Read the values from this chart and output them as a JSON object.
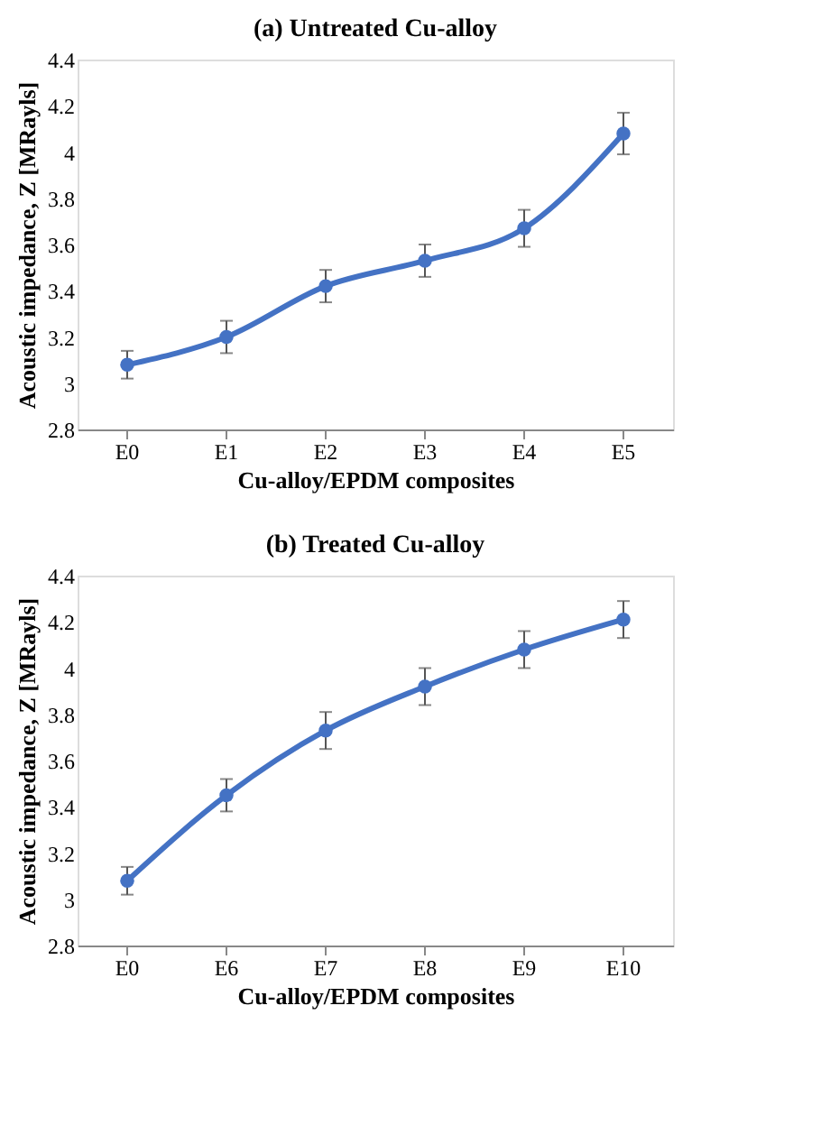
{
  "chart_data": [
    {
      "type": "line",
      "title": "(a) Untreated Cu-alloy",
      "xlabel": "Cu-alloy/EPDM composites",
      "ylabel": "Acoustic impedance, Z [MRayls]",
      "categories": [
        "E0",
        "E1",
        "E2",
        "E3",
        "E4",
        "E5"
      ],
      "series": [
        {
          "color": "#4472c4",
          "values": [
            3.08,
            3.2,
            3.42,
            3.53,
            3.67,
            4.08
          ],
          "errors": [
            0.06,
            0.07,
            0.07,
            0.07,
            0.08,
            0.09
          ]
        }
      ],
      "ylim": [
        2.8,
        4.4
      ],
      "yticks": [
        2.8,
        3,
        3.2,
        3.4,
        3.6,
        3.8,
        4,
        4.2,
        4.4
      ],
      "grid": false,
      "marker": "circle",
      "line_style": "solid"
    },
    {
      "type": "line",
      "title": "(b) Treated Cu-alloy",
      "xlabel": "Cu-alloy/EPDM composites",
      "ylabel": "Acoustic impedance, Z [MRayls]",
      "categories": [
        "E0",
        "E6",
        "E7",
        "E8",
        "E9",
        "E10"
      ],
      "series": [
        {
          "color": "#4472c4",
          "values": [
            3.08,
            3.45,
            3.73,
            3.92,
            4.08,
            4.21
          ],
          "errors": [
            0.06,
            0.07,
            0.08,
            0.08,
            0.08,
            0.08
          ]
        }
      ],
      "ylim": [
        2.8,
        4.4
      ],
      "yticks": [
        2.8,
        3,
        3.2,
        3.4,
        3.6,
        3.8,
        4,
        4.2,
        4.4
      ],
      "grid": false,
      "marker": "circle",
      "line_style": "solid"
    }
  ]
}
